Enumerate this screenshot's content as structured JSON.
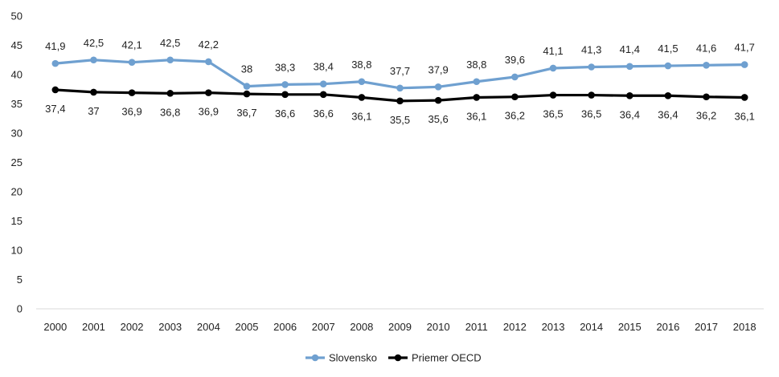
{
  "chart_data": {
    "type": "line",
    "title": "",
    "xlabel": "",
    "ylabel": "",
    "ylim": [
      0,
      50
    ],
    "yticks": [
      0,
      5,
      10,
      15,
      20,
      25,
      30,
      35,
      40,
      45,
      50
    ],
    "grid": false,
    "legend_position": "bottom",
    "categories": [
      "2000",
      "2001",
      "2002",
      "2003",
      "2004",
      "2005",
      "2006",
      "2007",
      "2008",
      "2009",
      "2010",
      "2011",
      "2012",
      "2013",
      "2014",
      "2015",
      "2016",
      "2017",
      "2018"
    ],
    "series": [
      {
        "name": "Slovensko",
        "color": "#6fa0d0",
        "values": [
          41.9,
          42.5,
          42.1,
          42.5,
          42.2,
          38,
          38.3,
          38.4,
          38.8,
          37.7,
          37.9,
          38.8,
          39.6,
          41.1,
          41.3,
          41.4,
          41.5,
          41.6,
          41.7
        ],
        "labels": [
          "41,9",
          "42,5",
          "42,1",
          "42,5",
          "42,2",
          "38",
          "38,3",
          "38,4",
          "38,8",
          "37,7",
          "37,9",
          "38,8",
          "39,6",
          "41,1",
          "41,3",
          "41,4",
          "41,5",
          "41,6",
          "41,7"
        ]
      },
      {
        "name": "Priemer OECD",
        "color": "#000000",
        "values": [
          37.4,
          37,
          36.9,
          36.8,
          36.9,
          36.7,
          36.6,
          36.6,
          36.1,
          35.5,
          35.6,
          36.1,
          36.2,
          36.5,
          36.5,
          36.4,
          36.4,
          36.2,
          36.1
        ],
        "labels": [
          "37,4",
          "37",
          "36,9",
          "36,8",
          "36,9",
          "36,7",
          "36,6",
          "36,6",
          "36,1",
          "35,5",
          "35,6",
          "36,1",
          "36,2",
          "36,5",
          "36,5",
          "36,4",
          "36,4",
          "36,2",
          "36,1"
        ]
      }
    ]
  }
}
